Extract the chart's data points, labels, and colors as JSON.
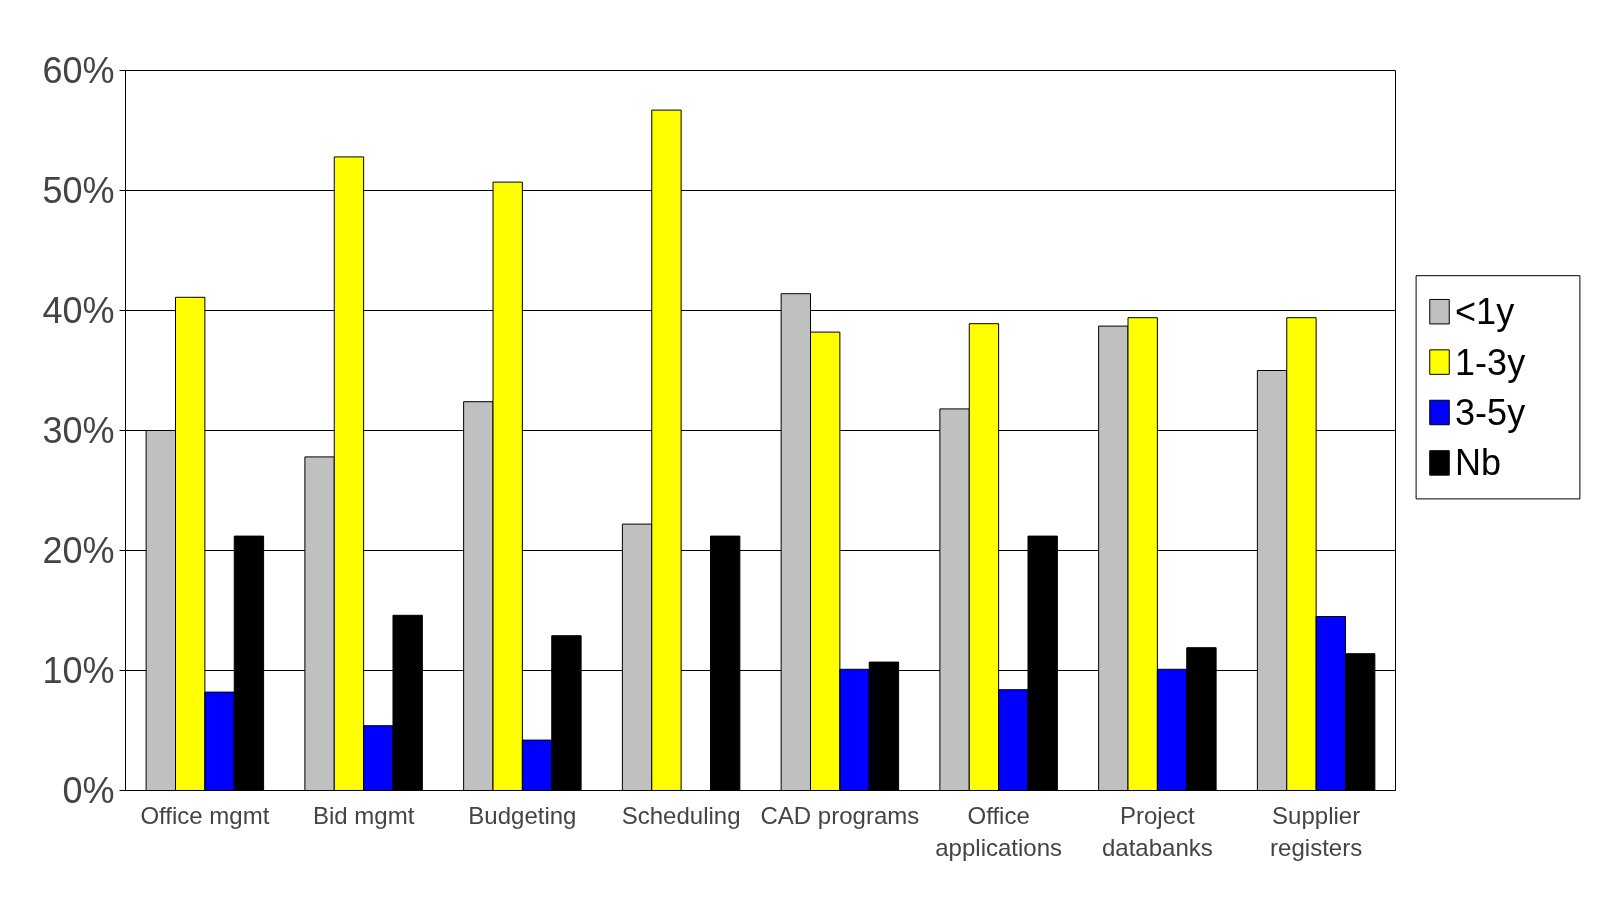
{
  "chart_data": {
    "type": "bar",
    "categories": [
      "Office mgmt",
      "Bid mgmt",
      "Budgeting",
      "Scheduling",
      "CAD programs",
      "Office applications",
      "Project databanks",
      "Supplier registers"
    ],
    "series": [
      {
        "name": "<1y",
        "color": "#c0c0c0",
        "values": [
          30,
          27.8,
          32.4,
          22.2,
          41.4,
          31.8,
          38.7,
          35
        ]
      },
      {
        "name": "1-3y",
        "color": "#ffff00",
        "values": [
          41.1,
          52.8,
          50.7,
          56.7,
          38.2,
          38.9,
          39.4,
          39.4
        ]
      },
      {
        "name": "3-5y",
        "color": "#0000ff",
        "values": [
          8.2,
          5.4,
          4.2,
          null,
          10.1,
          8.4,
          10.1,
          14.5
        ]
      },
      {
        "name": "Nb",
        "color": "#000000",
        "values": [
          21.2,
          14.6,
          12.9,
          21.2,
          10.7,
          21.2,
          11.9,
          11.4
        ]
      }
    ],
    "ylim": [
      0,
      60
    ],
    "yticks": [
      {
        "value": 0,
        "label": "0%"
      },
      {
        "value": 10,
        "label": "10%"
      },
      {
        "value": 20,
        "label": "20%"
      },
      {
        "value": 30,
        "label": "30%"
      },
      {
        "value": 40,
        "label": "40%"
      },
      {
        "value": 50,
        "label": "50%"
      },
      {
        "value": 60,
        "label": "60%"
      }
    ],
    "grid": "y",
    "legend": "right"
  }
}
